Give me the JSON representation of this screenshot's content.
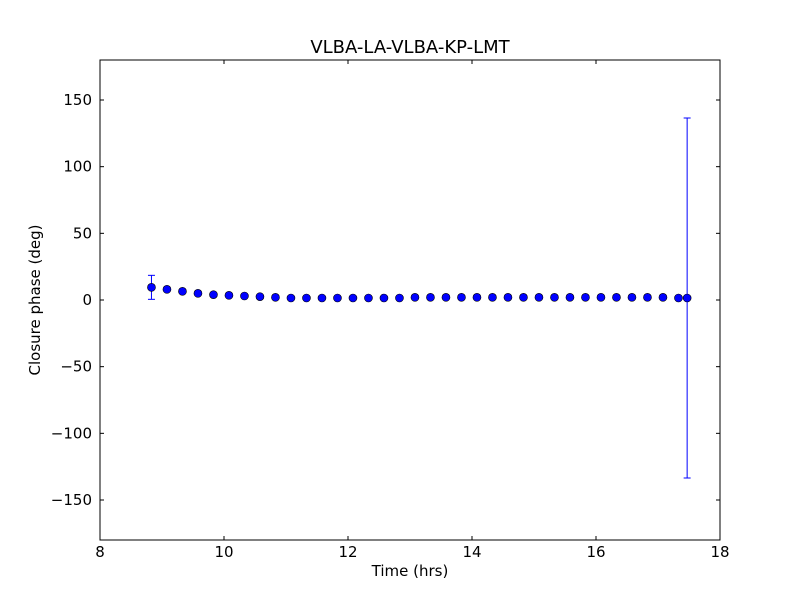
{
  "chart_data": {
    "type": "scatter",
    "title": "VLBA-LA-VLBA-KP-LMT",
    "xlabel": "Time (hrs)",
    "ylabel": "Closure phase (deg)",
    "xlim": [
      8,
      18
    ],
    "ylim": [
      -180,
      180
    ],
    "xticks": [
      8,
      10,
      12,
      14,
      16,
      18
    ],
    "yticks": [
      -150,
      -100,
      -50,
      0,
      50,
      100,
      150
    ],
    "xtick_labels": [
      "8",
      "10",
      "12",
      "14",
      "16",
      "18"
    ],
    "ytick_labels": [
      "−150",
      "−100",
      "−50",
      "0",
      "50",
      "100",
      "150"
    ],
    "grid": false,
    "legend": false,
    "marker_color": "#0000ff",
    "errorbar_color": "#0000ff",
    "points": [
      {
        "x": 8.83,
        "y": 9.5,
        "err": 9.0
      },
      {
        "x": 9.08,
        "y": 8.0,
        "err": 0
      },
      {
        "x": 9.33,
        "y": 6.5,
        "err": 0
      },
      {
        "x": 9.58,
        "y": 5.0,
        "err": 0
      },
      {
        "x": 9.83,
        "y": 4.0,
        "err": 0
      },
      {
        "x": 10.08,
        "y": 3.5,
        "err": 0
      },
      {
        "x": 10.33,
        "y": 3.0,
        "err": 0
      },
      {
        "x": 10.58,
        "y": 2.5,
        "err": 0
      },
      {
        "x": 10.83,
        "y": 2.0,
        "err": 0
      },
      {
        "x": 11.08,
        "y": 1.5,
        "err": 0
      },
      {
        "x": 11.33,
        "y": 1.5,
        "err": 0
      },
      {
        "x": 11.58,
        "y": 1.5,
        "err": 0
      },
      {
        "x": 11.83,
        "y": 1.5,
        "err": 0
      },
      {
        "x": 12.08,
        "y": 1.5,
        "err": 0
      },
      {
        "x": 12.33,
        "y": 1.5,
        "err": 0
      },
      {
        "x": 12.58,
        "y": 1.5,
        "err": 0
      },
      {
        "x": 12.83,
        "y": 1.5,
        "err": 0
      },
      {
        "x": 13.08,
        "y": 2.0,
        "err": 0
      },
      {
        "x": 13.33,
        "y": 2.0,
        "err": 0
      },
      {
        "x": 13.58,
        "y": 2.0,
        "err": 0
      },
      {
        "x": 13.83,
        "y": 2.0,
        "err": 0
      },
      {
        "x": 14.08,
        "y": 2.0,
        "err": 0
      },
      {
        "x": 14.33,
        "y": 2.0,
        "err": 0
      },
      {
        "x": 14.58,
        "y": 2.0,
        "err": 0
      },
      {
        "x": 14.83,
        "y": 2.0,
        "err": 0
      },
      {
        "x": 15.08,
        "y": 2.0,
        "err": 0
      },
      {
        "x": 15.33,
        "y": 2.0,
        "err": 0
      },
      {
        "x": 15.58,
        "y": 2.0,
        "err": 0
      },
      {
        "x": 15.83,
        "y": 2.0,
        "err": 0
      },
      {
        "x": 16.08,
        "y": 2.0,
        "err": 0
      },
      {
        "x": 16.33,
        "y": 2.0,
        "err": 0
      },
      {
        "x": 16.58,
        "y": 2.0,
        "err": 0
      },
      {
        "x": 16.83,
        "y": 2.0,
        "err": 0
      },
      {
        "x": 17.08,
        "y": 2.0,
        "err": 0
      },
      {
        "x": 17.33,
        "y": 1.5,
        "err": 0
      },
      {
        "x": 17.47,
        "y": 1.5,
        "err": 135.0
      }
    ]
  }
}
